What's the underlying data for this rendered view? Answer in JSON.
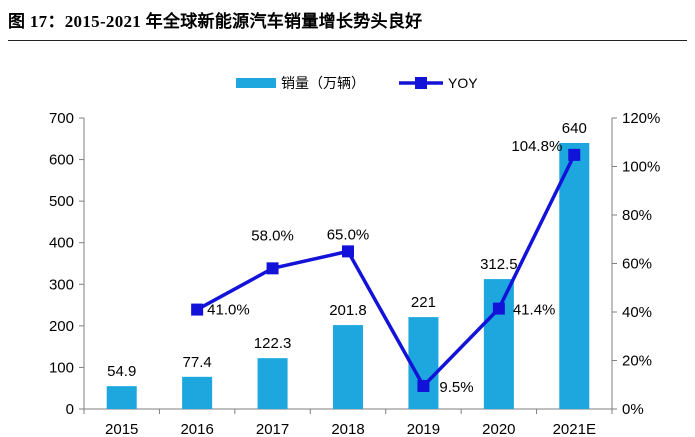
{
  "figure": {
    "title": "图 17：2015-2021 年全球新能源汽车销量增长势头良好"
  },
  "colors": {
    "bar": "#1da7de",
    "line": "#1212d8",
    "axis": "#7f7f7f"
  },
  "chart_data": {
    "type": "bar",
    "title": "",
    "categories": [
      "2015",
      "2016",
      "2017",
      "2018",
      "2019",
      "2020",
      "2021E"
    ],
    "series": [
      {
        "name": "销量（万辆）",
        "type": "bar",
        "axis": "left",
        "values": [
          54.9,
          77.4,
          122.3,
          201.8,
          221,
          312.5,
          640
        ],
        "labels": [
          "54.9",
          "77.4",
          "122.3",
          "201.8",
          "221",
          "312.5",
          "640"
        ]
      },
      {
        "name": "YOY",
        "type": "line",
        "axis": "right",
        "values": [
          null,
          41.0,
          58.0,
          65.0,
          9.5,
          41.4,
          104.8
        ],
        "labels": [
          "",
          "41.0%",
          "58.0%",
          "65.0%",
          "9.5%",
          "41.4%",
          "104.8%"
        ]
      }
    ],
    "y_left": {
      "lim": [
        0,
        700
      ],
      "ticks": [
        0,
        100,
        200,
        300,
        400,
        500,
        600,
        700
      ],
      "tick_labels": [
        "0",
        "100",
        "200",
        "300",
        "400",
        "500",
        "600",
        "700"
      ]
    },
    "y_right": {
      "lim": [
        0,
        120
      ],
      "ticks": [
        0,
        20,
        40,
        60,
        80,
        100,
        120
      ],
      "tick_labels": [
        "0%",
        "20%",
        "40%",
        "60%",
        "80%",
        "100%",
        "120%"
      ]
    },
    "legend": {
      "position": "top-center"
    },
    "grid": false
  }
}
